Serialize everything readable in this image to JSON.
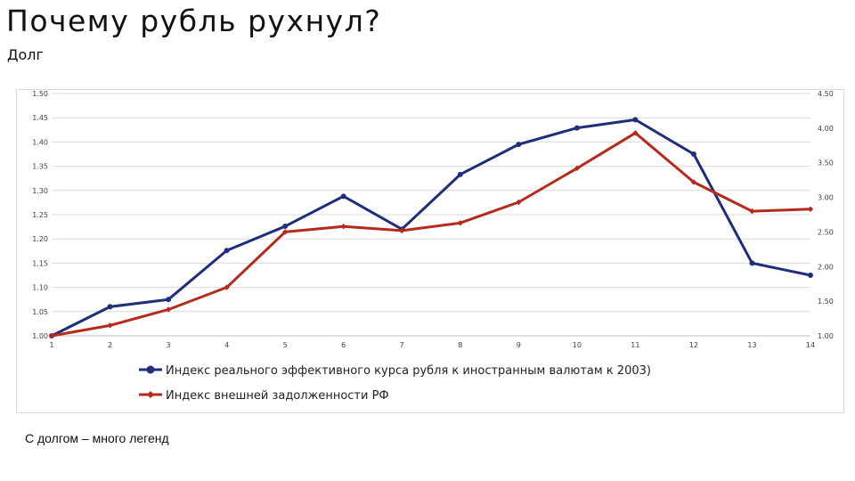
{
  "slide": {
    "title": "Почему рубль рухнул?",
    "subtitle": "Долг",
    "note": "С долгом – много легенд"
  },
  "chart_data": {
    "type": "line",
    "x": [
      1,
      2,
      3,
      4,
      5,
      6,
      7,
      8,
      9,
      10,
      11,
      12,
      13,
      14
    ],
    "y_left_range": [
      1.0,
      1.5
    ],
    "y_left_ticks": [
      "1.00",
      "1.05",
      "1.10",
      "1.15",
      "1.20",
      "1.25",
      "1.30",
      "1.35",
      "1.40",
      "1.45",
      "1.50"
    ],
    "y_right_range": [
      1.0,
      4.5
    ],
    "y_right_ticks": [
      "1.00",
      "1.50",
      "2.00",
      "2.50",
      "3.00",
      "3.50",
      "4.00",
      "4.50"
    ],
    "grid": true,
    "legend_position": "bottom",
    "series": [
      {
        "name": "Индекс реального эффективного курса рубля к иностранным валютам  к 2003)",
        "axis": "left",
        "color": "#1f2d7a",
        "marker": "circle",
        "values": [
          1.0,
          1.06,
          1.075,
          1.176,
          1.226,
          1.288,
          1.22,
          1.333,
          1.395,
          1.429,
          1.446,
          1.375,
          1.15,
          1.125
        ]
      },
      {
        "name": "Индекс внешней задолженности РФ",
        "axis": "right",
        "color": "#b52a1c",
        "marker": "diamond",
        "values": [
          1.0,
          1.15,
          1.38,
          1.7,
          2.5,
          2.58,
          2.52,
          2.63,
          2.93,
          3.42,
          3.93,
          3.22,
          2.8,
          2.83
        ]
      }
    ]
  }
}
